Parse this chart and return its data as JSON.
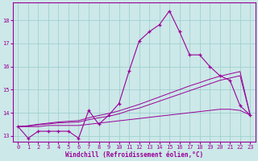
{
  "x_values": [
    0,
    1,
    2,
    3,
    4,
    5,
    6,
    7,
    8,
    9,
    10,
    11,
    12,
    13,
    14,
    15,
    16,
    17,
    18,
    19,
    20,
    21,
    22,
    23
  ],
  "line_main": [
    13.4,
    12.9,
    13.2,
    13.2,
    13.2,
    13.2,
    12.9,
    14.1,
    13.5,
    13.9,
    14.4,
    15.8,
    17.1,
    17.5,
    17.8,
    18.4,
    17.5,
    16.5,
    16.5,
    16.0,
    15.6,
    15.4,
    14.3,
    13.9
  ],
  "line_trend1": [
    13.4,
    13.4,
    13.4,
    13.45,
    13.45,
    13.45,
    13.45,
    13.5,
    13.55,
    13.6,
    13.65,
    13.7,
    13.75,
    13.8,
    13.85,
    13.9,
    13.95,
    14.0,
    14.05,
    14.1,
    14.15,
    14.15,
    14.1,
    13.9
  ],
  "line_trend2": [
    13.4,
    13.42,
    13.48,
    13.52,
    13.56,
    13.58,
    13.6,
    13.7,
    13.78,
    13.85,
    13.95,
    14.1,
    14.2,
    14.35,
    14.5,
    14.65,
    14.8,
    14.95,
    15.1,
    15.25,
    15.4,
    15.5,
    15.6,
    13.9
  ],
  "line_trend3": [
    13.4,
    13.44,
    13.5,
    13.55,
    13.6,
    13.63,
    13.66,
    13.78,
    13.88,
    13.97,
    14.08,
    14.22,
    14.36,
    14.52,
    14.68,
    14.84,
    15.0,
    15.16,
    15.3,
    15.45,
    15.58,
    15.68,
    15.78,
    13.9
  ],
  "color": "#990099",
  "bg_color": "#cce8e8",
  "grid_color": "#99cccc",
  "xlabel": "Windchill (Refroidissement éolien,°C)",
  "ylim": [
    12.75,
    18.75
  ],
  "xlim": [
    -0.5,
    23.5
  ],
  "yticks": [
    13,
    14,
    15,
    16,
    17,
    18
  ],
  "xticks": [
    0,
    1,
    2,
    3,
    4,
    5,
    6,
    7,
    8,
    9,
    10,
    11,
    12,
    13,
    14,
    15,
    16,
    17,
    18,
    19,
    20,
    21,
    22,
    23
  ],
  "tick_fontsize": 5.0,
  "xlabel_fontsize": 5.5
}
